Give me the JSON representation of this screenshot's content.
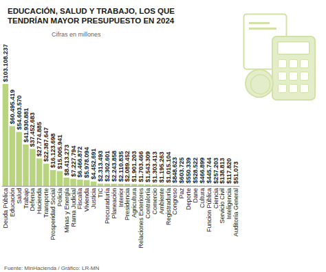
{
  "chart_data": {
    "type": "bar",
    "title": "EDUCACIÓN, SALUD Y TRABAJO, LOS QUE\nTENDRÍAN MAYOR PRESUPUESTO EN 2024",
    "subtitle": "Cifras en millones",
    "source": "Fuente: MinHacienda / Gráfico: LR-MN",
    "categories": [
      "Deuda Pública",
      "Educación",
      "Salud",
      "Trabajo",
      "Defensa",
      "Hacienda",
      "Transporte",
      "Prosperidad Social",
      "Policía",
      "Minas y Energía",
      "Rama Judicial",
      "Fiscalía",
      "Vivienda",
      "Justicia",
      "TIC",
      "Procuraduría",
      "Planeación",
      "Interior",
      "Presidencia",
      "Agricultura",
      "Relaciones Exteriores",
      "Contraloría",
      "Comercio",
      "Ambiente",
      "Registraduría",
      "Congreso",
      "Paz",
      "Deporte",
      "Dane",
      "Cultura",
      "Funcion Pública",
      "Ciencia",
      "Servicio Civil",
      "Inteligencia",
      "Auditoría General"
    ],
    "values": [
      103108237,
      60495419,
      54603570,
      41930881,
      37452683,
      27774885,
      22387647,
      16123698,
      15005941,
      8413273,
      7227794,
      6466872,
      5978094,
      4452691,
      2313493,
      2302601,
      2243858,
      2110835,
      2089452,
      1901203,
      1703466,
      1543309,
      1303413,
      1195263,
      1015104,
      848623,
      603725,
      550339,
      528522,
      466899,
      445744,
      257203,
      138813,
      117820,
      51073
    ],
    "value_labels": [
      "$103.108.237",
      "$60.495.419",
      "$54.603.570",
      "$41.930.881",
      "$37.452.683",
      "$27.774.885",
      "$22.387.647",
      "$16.123.698",
      "$15.005.941",
      "$8.413.273",
      "$7.227.794",
      "$6.466.872",
      "$5.978.094",
      "$4.452.691",
      "$2.313.493",
      "$2.302.601",
      "$2.243.858",
      "$2.110.835",
      "$2.089.452",
      "$1.901.203",
      "$1.703.466",
      "$1.543.309",
      "$1.303.413",
      "$1.195.263",
      "$1.015.104",
      "$848.623",
      "$603.725",
      "$550.339",
      "$528.522",
      "$466.899",
      "$445.744",
      "$257.203",
      "$138.813",
      "$117.820",
      "$51.073"
    ],
    "color": "#b9d47e",
    "ylim": [
      0,
      103108237
    ],
    "data_labels": true,
    "tick_labels": "x",
    "grid": false
  }
}
